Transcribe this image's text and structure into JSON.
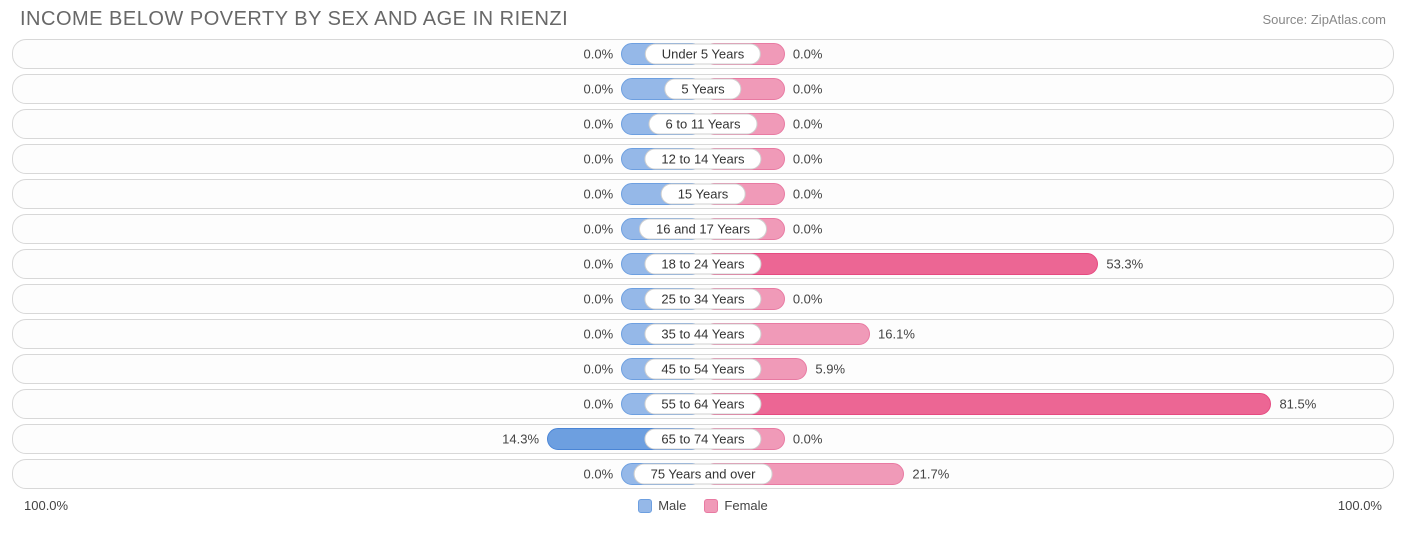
{
  "title": "INCOME BELOW POVERTY BY SEX AND AGE IN RIENZI",
  "source": "Source: ZipAtlas.com",
  "axis_left": "100.0%",
  "axis_right": "100.0%",
  "legend": {
    "male": "Male",
    "female": "Female"
  },
  "chart": {
    "type": "diverging-bar",
    "min_bar_pct": 12,
    "base_bar_pct": 10,
    "colors": {
      "male_fill": "#95b8e8",
      "male_border": "#6d9fe0",
      "male_intense_fill": "#6d9fe0",
      "male_intense_border": "#4a85d6",
      "female_fill": "#f09ab8",
      "female_border": "#e87aa2",
      "female_intense_fill": "#ec6694",
      "female_intense_border": "#e54a80",
      "track_border": "#d8d8d8",
      "track_bg": "#fdfdfd",
      "text": "#444444",
      "title_color": "#686868"
    },
    "rows": [
      {
        "label": "Under 5 Years",
        "male": 0.0,
        "female": 0.0
      },
      {
        "label": "5 Years",
        "male": 0.0,
        "female": 0.0
      },
      {
        "label": "6 to 11 Years",
        "male": 0.0,
        "female": 0.0
      },
      {
        "label": "12 to 14 Years",
        "male": 0.0,
        "female": 0.0
      },
      {
        "label": "15 Years",
        "male": 0.0,
        "female": 0.0
      },
      {
        "label": "16 and 17 Years",
        "male": 0.0,
        "female": 0.0
      },
      {
        "label": "18 to 24 Years",
        "male": 0.0,
        "female": 53.3
      },
      {
        "label": "25 to 34 Years",
        "male": 0.0,
        "female": 0.0
      },
      {
        "label": "35 to 44 Years",
        "male": 0.0,
        "female": 16.1
      },
      {
        "label": "45 to 54 Years",
        "male": 0.0,
        "female": 5.9
      },
      {
        "label": "55 to 64 Years",
        "male": 0.0,
        "female": 81.5
      },
      {
        "label": "65 to 74 Years",
        "male": 14.3,
        "female": 0.0
      },
      {
        "label": "75 Years and over",
        "male": 0.0,
        "female": 21.7
      }
    ]
  }
}
